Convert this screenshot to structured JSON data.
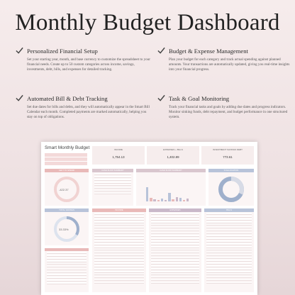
{
  "title": "Monthly Budget Dashboard",
  "features": [
    {
      "title": "Personalized Financial Setup",
      "body": "Set your starting year, month, and base currency to customize the spreadsheet to your financial needs. Create up to 50 custom categories across income, savings, investments, debt, bills, and expenses for detailed tracking."
    },
    {
      "title": "Budget & Expense Management",
      "body": "Plan your budget for each category and track actual spending against planned amounts. Your transactions are automatically updated, giving you real-time insights into your financial progress."
    },
    {
      "title": "Automated Bill & Debt Tracking",
      "body": "Set due dates for bills and debts, and they will automatically appear in the Smart Bill Calendar each month. Completed payments are marked automatically, helping you stay on top of obligations."
    },
    {
      "title": "Task & Goal Monitoring",
      "body": "Track your financial tasks and goals by adding due dates and progress indicators. Monitor sinking funds, debt repayment, and budget performance in one structured system."
    }
  ],
  "sheet": {
    "name": "Smart Monthly Budget",
    "kpis": [
      {
        "label": "INCOME",
        "value": "1,754.13"
      },
      {
        "label": "EXPENSES + BILLS",
        "value": "1,402.89"
      },
      {
        "label": "INVESTMENT SAVINGS DEBT",
        "value": "773.61"
      }
    ],
    "panels": {
      "left_to_spend": "LEFT TO SPEND",
      "cash_flow": "CASH FLOW SUMMARY",
      "cash_flow_chart": "CASH FLOW SUMMARY",
      "allocation": "% ALLOCATION",
      "total_savings": "TOTAL SAVINGS",
      "income": "INCOME",
      "expenses": "EXPENSES",
      "bills": "BILLS"
    },
    "left_to_spend_value": "-422.37",
    "savings_percent": "33.33%"
  },
  "colors": {
    "accent_pink": "#e9b9b8",
    "accent_blue": "#b8c3d9",
    "accent_mauve": "#c9b8c9",
    "check": "#444444"
  }
}
